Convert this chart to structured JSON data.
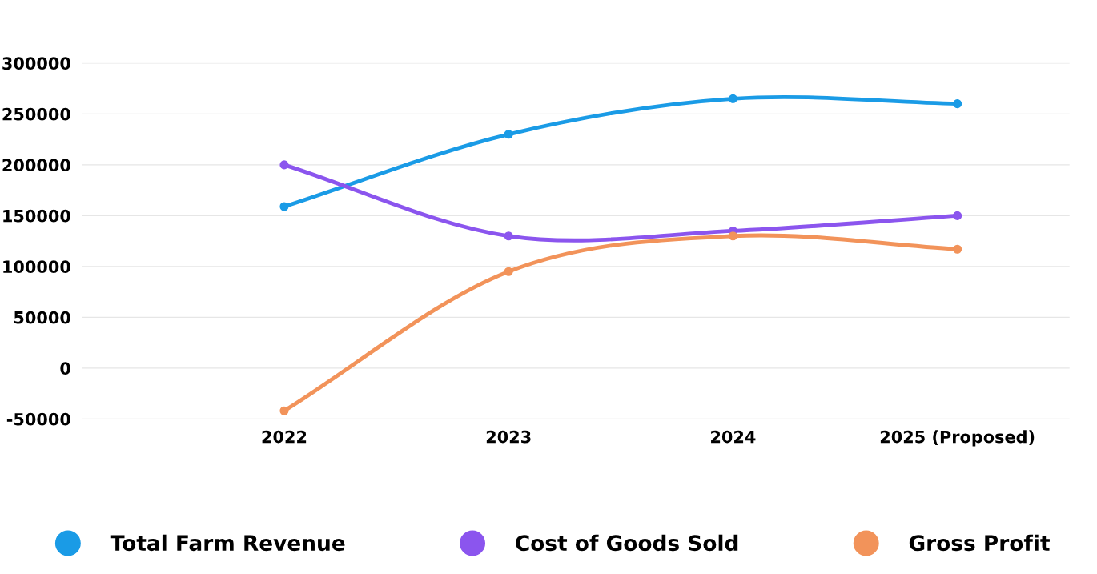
{
  "chart_data": {
    "type": "line",
    "categories": [
      "2022",
      "2023",
      "2024",
      "2025 (Proposed)"
    ],
    "series": [
      {
        "name": "Total Farm Revenue",
        "color": "#1a9be6",
        "values": [
          159000,
          230000,
          265000,
          260000
        ]
      },
      {
        "name": "Cost of Goods Sold",
        "color": "#8b55ee",
        "values": [
          200000,
          130000,
          135000,
          150000
        ]
      },
      {
        "name": "Gross Profit",
        "color": "#f2935a",
        "values": [
          -42000,
          95000,
          130000,
          117000
        ]
      }
    ],
    "ylim": [
      -50000,
      300000
    ],
    "yticks": [
      -50000,
      0,
      50000,
      100000,
      150000,
      200000,
      250000,
      300000
    ],
    "grid": "y",
    "legend": "bottom",
    "marker": "circle",
    "line_style": "solid"
  }
}
